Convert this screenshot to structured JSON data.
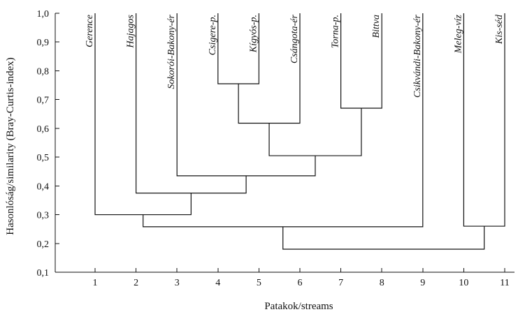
{
  "chart_data": {
    "type": "dendrogram",
    "xlabel": "Patakok/streams",
    "ylabel": "Hasonlóság/similarity (Bray-Curtis-index)",
    "ylim": [
      0.1,
      1.0
    ],
    "yticks": [
      "0,1",
      "0,2",
      "0,3",
      "0,4",
      "0,5",
      "0,6",
      "0,7",
      "0,8",
      "0,9",
      "1,0"
    ],
    "xticks": [
      "1",
      "2",
      "3",
      "4",
      "5",
      "6",
      "7",
      "8",
      "9",
      "10",
      "11"
    ],
    "leaves": [
      {
        "pos": 1,
        "label": "Gerence"
      },
      {
        "pos": 2,
        "label": "Hajagos"
      },
      {
        "pos": 3,
        "label": "Sokorói-Bakony-ér"
      },
      {
        "pos": 4,
        "label": "Csigere-p."
      },
      {
        "pos": 5,
        "label": "Kígyós-p."
      },
      {
        "pos": 6,
        "label": "Csángota-ér"
      },
      {
        "pos": 7,
        "label": "Torna-p."
      },
      {
        "pos": 8,
        "label": "Bittva"
      },
      {
        "pos": 9,
        "label": "Csikvándi-Bakony-ér"
      },
      {
        "pos": 10,
        "label": "Meleg-víz"
      },
      {
        "pos": 11,
        "label": "Kis-séd"
      }
    ],
    "merges": [
      {
        "left": "leaf:4",
        "right": "leaf:5",
        "similarity": 0.755
      },
      {
        "left": "leaf:7",
        "right": "leaf:8",
        "similarity": 0.67
      },
      {
        "left": "merge:0",
        "right": "leaf:6",
        "similarity": 0.618
      },
      {
        "left": "merge:2",
        "right": "merge:1",
        "similarity": 0.505
      },
      {
        "left": "leaf:3",
        "right": "merge:3",
        "similarity": 0.435
      },
      {
        "left": "leaf:2",
        "right": "merge:4",
        "similarity": 0.375
      },
      {
        "left": "leaf:1",
        "right": "merge:5",
        "similarity": 0.3
      },
      {
        "left": "leaf:10",
        "right": "leaf:11",
        "similarity": 0.26
      },
      {
        "left": "merge:6",
        "right": "leaf:9",
        "similarity": 0.258
      },
      {
        "left": "merge:8",
        "right": "merge:7",
        "similarity": 0.18
      }
    ]
  }
}
